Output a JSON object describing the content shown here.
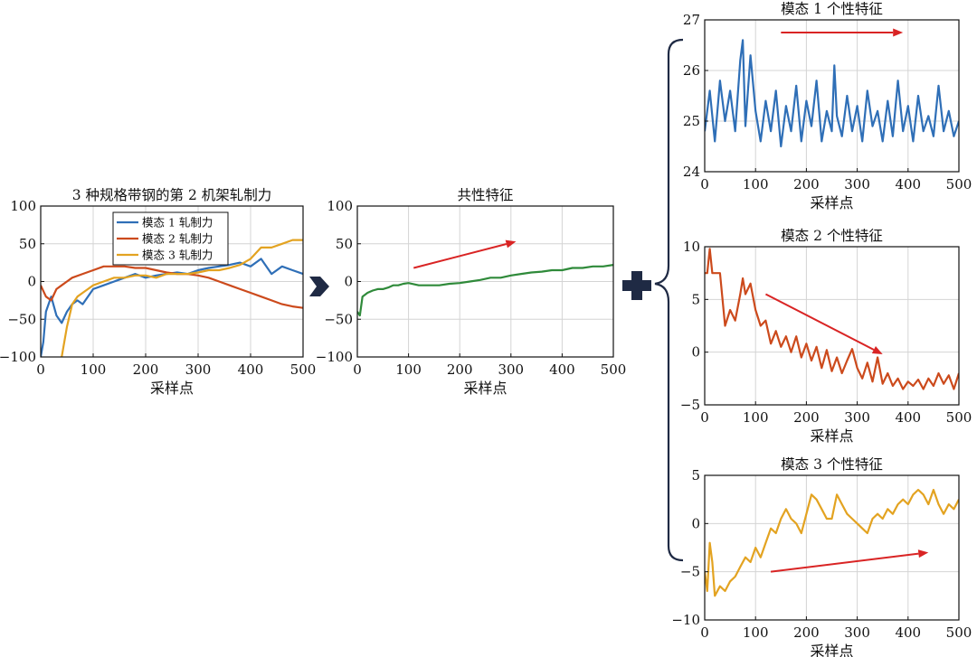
{
  "colors": {
    "mode1": "#2f6fb7",
    "mode2": "#cc4a1c",
    "mode3": "#e3a321",
    "common": "#2f8a3a",
    "trend_arrow": "#d92424",
    "connector": "#1f2a44"
  },
  "chart_data": [
    {
      "id": "rolling-force",
      "type": "line",
      "title": "3 种规格带钢的第 2 机架轧制力",
      "xlabel": "采样点",
      "ylabel": "",
      "xlim": [
        0,
        500
      ],
      "ylim": [
        -100,
        100
      ],
      "xticks": [
        0,
        100,
        200,
        300,
        400,
        500
      ],
      "yticks": [
        -100,
        -50,
        0,
        50,
        100
      ],
      "grid": true,
      "legend": "top-left",
      "series": [
        {
          "name": "模态 1 轧制力",
          "color_key": "mode1",
          "x": [
            0,
            5,
            10,
            20,
            30,
            40,
            50,
            60,
            70,
            80,
            90,
            100,
            120,
            140,
            160,
            180,
            200,
            220,
            240,
            260,
            280,
            300,
            320,
            340,
            360,
            380,
            400,
            420,
            440,
            460,
            480,
            500
          ],
          "y": [
            -100,
            -80,
            -40,
            -20,
            -45,
            -55,
            -40,
            -30,
            -25,
            -30,
            -20,
            -10,
            -5,
            0,
            5,
            10,
            5,
            8,
            10,
            12,
            10,
            15,
            18,
            20,
            22,
            25,
            20,
            30,
            10,
            20,
            15,
            10
          ]
        },
        {
          "name": "模态 2 轧制力",
          "color_key": "mode2",
          "x": [
            0,
            10,
            20,
            30,
            40,
            50,
            60,
            80,
            100,
            120,
            140,
            160,
            180,
            200,
            220,
            240,
            260,
            280,
            300,
            320,
            340,
            360,
            380,
            400,
            420,
            440,
            460,
            480,
            500
          ],
          "y": [
            -5,
            -20,
            -25,
            -10,
            -5,
            0,
            5,
            10,
            15,
            20,
            20,
            20,
            18,
            18,
            15,
            12,
            10,
            10,
            8,
            5,
            0,
            -5,
            -10,
            -15,
            -20,
            -25,
            -30,
            -33,
            -35
          ]
        },
        {
          "name": "模态 3 轧制力",
          "color_key": "mode3",
          "x": [
            40,
            45,
            50,
            60,
            70,
            80,
            90,
            100,
            120,
            140,
            160,
            180,
            200,
            220,
            240,
            260,
            280,
            300,
            320,
            340,
            360,
            380,
            400,
            420,
            440,
            460,
            480,
            500
          ],
          "y": [
            -100,
            -80,
            -60,
            -30,
            -20,
            -15,
            -10,
            -5,
            0,
            5,
            5,
            8,
            8,
            5,
            10,
            10,
            10,
            12,
            15,
            15,
            18,
            22,
            30,
            45,
            45,
            50,
            55,
            55
          ]
        }
      ]
    },
    {
      "id": "common-feature",
      "type": "line",
      "title": "共性特征",
      "xlabel": "采样点",
      "ylabel": "",
      "xlim": [
        0,
        500
      ],
      "ylim": [
        -100,
        100
      ],
      "xticks": [
        0,
        100,
        200,
        300,
        400,
        500
      ],
      "yticks": [
        -100,
        -50,
        0,
        50,
        100
      ],
      "grid": true,
      "series": [
        {
          "color_key": "common",
          "x": [
            0,
            5,
            10,
            20,
            30,
            40,
            50,
            60,
            70,
            80,
            90,
            100,
            120,
            140,
            160,
            180,
            200,
            220,
            240,
            260,
            280,
            300,
            320,
            340,
            360,
            380,
            400,
            420,
            440,
            460,
            480,
            500
          ],
          "y": [
            -40,
            -45,
            -20,
            -15,
            -12,
            -10,
            -10,
            -8,
            -5,
            -5,
            -3,
            -2,
            -5,
            -5,
            -5,
            -3,
            -2,
            0,
            2,
            5,
            5,
            8,
            10,
            12,
            13,
            15,
            15,
            18,
            18,
            20,
            20,
            22
          ]
        }
      ],
      "annotations": [
        {
          "type": "trend-arrow",
          "from": [
            110,
            18
          ],
          "to": [
            310,
            53
          ]
        }
      ]
    },
    {
      "id": "mode1-feature",
      "type": "line",
      "title": "模态 1 个性特征",
      "xlabel": "采样点",
      "ylabel": "",
      "xlim": [
        0,
        500
      ],
      "ylim": [
        24,
        27
      ],
      "xticks": [
        0,
        100,
        200,
        300,
        400,
        500
      ],
      "yticks": [
        24,
        25,
        26,
        27
      ],
      "grid": true,
      "series": [
        {
          "color_key": "mode1",
          "x": [
            0,
            10,
            20,
            30,
            40,
            50,
            60,
            70,
            75,
            80,
            90,
            100,
            110,
            120,
            130,
            140,
            150,
            160,
            170,
            180,
            190,
            200,
            210,
            220,
            230,
            240,
            250,
            255,
            260,
            270,
            280,
            290,
            300,
            310,
            320,
            330,
            340,
            350,
            360,
            370,
            380,
            390,
            400,
            410,
            420,
            430,
            440,
            450,
            460,
            470,
            480,
            490,
            500
          ],
          "y": [
            24.8,
            25.6,
            24.6,
            25.8,
            25.0,
            25.6,
            24.8,
            26.2,
            26.6,
            24.9,
            26.3,
            25.2,
            24.6,
            25.4,
            24.8,
            25.6,
            24.5,
            25.3,
            24.8,
            25.7,
            24.6,
            25.4,
            24.9,
            25.8,
            24.6,
            25.2,
            24.8,
            26.1,
            25.1,
            24.7,
            25.5,
            24.8,
            25.3,
            24.6,
            25.6,
            24.9,
            25.2,
            24.6,
            25.4,
            24.7,
            25.8,
            24.8,
            25.3,
            24.6,
            25.5,
            24.8,
            25.1,
            24.7,
            25.7,
            24.8,
            25.2,
            24.7,
            25.0
          ]
        }
      ],
      "annotations": [
        {
          "type": "trend-arrow",
          "from": [
            150,
            26.75
          ],
          "to": [
            390,
            26.75
          ]
        }
      ]
    },
    {
      "id": "mode2-feature",
      "type": "line",
      "title": "模态 2 个性特征",
      "xlabel": "采样点",
      "ylabel": "",
      "xlim": [
        0,
        500
      ],
      "ylim": [
        -5,
        10
      ],
      "xticks": [
        0,
        100,
        200,
        300,
        400,
        500
      ],
      "yticks": [
        -5,
        0,
        5,
        10
      ],
      "grid": true,
      "series": [
        {
          "color_key": "mode2",
          "x": [
            0,
            5,
            10,
            15,
            20,
            30,
            40,
            50,
            60,
            70,
            75,
            80,
            90,
            100,
            110,
            120,
            130,
            140,
            150,
            160,
            170,
            180,
            190,
            200,
            210,
            220,
            230,
            240,
            250,
            260,
            270,
            280,
            290,
            300,
            310,
            320,
            330,
            340,
            350,
            360,
            370,
            380,
            390,
            400,
            410,
            420,
            430,
            440,
            450,
            460,
            470,
            480,
            490,
            500
          ],
          "y": [
            7.5,
            7.5,
            9.8,
            7.5,
            7.5,
            7.5,
            2.5,
            4.0,
            3.0,
            5.5,
            7.0,
            5.5,
            6.5,
            4.0,
            2.5,
            3.0,
            0.8,
            2.0,
            0.5,
            1.5,
            0.0,
            1.5,
            -0.5,
            0.8,
            -0.8,
            0.5,
            -1.5,
            0.2,
            -1.8,
            -0.5,
            -2.0,
            -0.8,
            0.3,
            -1.5,
            -2.5,
            -1.0,
            -2.8,
            -0.5,
            -3.0,
            -2.0,
            -3.2,
            -2.5,
            -3.5,
            -2.8,
            -3.2,
            -2.6,
            -3.5,
            -2.5,
            -3.2,
            -2.0,
            -3.0,
            -2.2,
            -3.5,
            -2.0
          ]
        }
      ],
      "annotations": [
        {
          "type": "trend-arrow",
          "from": [
            120,
            5.5
          ],
          "to": [
            350,
            -0.2
          ]
        }
      ]
    },
    {
      "id": "mode3-feature",
      "type": "line",
      "title": "模态 3 个性特征",
      "xlabel": "采样点",
      "ylabel": "",
      "xlim": [
        0,
        500
      ],
      "ylim": [
        -10,
        5
      ],
      "xticks": [
        0,
        100,
        200,
        300,
        400,
        500
      ],
      "yticks": [
        -10,
        -5,
        0,
        5
      ],
      "grid": true,
      "series": [
        {
          "color_key": "mode3",
          "x": [
            0,
            5,
            10,
            15,
            20,
            30,
            40,
            50,
            60,
            70,
            80,
            90,
            100,
            110,
            120,
            130,
            140,
            150,
            160,
            170,
            180,
            190,
            200,
            210,
            220,
            230,
            240,
            250,
            260,
            270,
            280,
            290,
            300,
            310,
            320,
            330,
            340,
            350,
            360,
            370,
            380,
            390,
            400,
            410,
            420,
            430,
            440,
            450,
            460,
            470,
            480,
            490,
            500
          ],
          "y": [
            -5,
            -7,
            -2,
            -4,
            -7.5,
            -6.5,
            -7,
            -6,
            -5.5,
            -4.5,
            -3.5,
            -4,
            -2.5,
            -3.5,
            -2,
            -0.5,
            -1,
            0.5,
            1.5,
            0.5,
            0,
            -1,
            1,
            3,
            2.5,
            1.5,
            0.5,
            0.5,
            3,
            2,
            1,
            0.5,
            0,
            -0.5,
            -1,
            0.5,
            1,
            0.5,
            1.5,
            1,
            2,
            2.5,
            2,
            3,
            3.5,
            3,
            2,
            3.5,
            2,
            1,
            2,
            1.5,
            2.5
          ]
        }
      ],
      "annotations": [
        {
          "type": "trend-arrow",
          "from": [
            130,
            -5
          ],
          "to": [
            440,
            -3
          ]
        }
      ]
    }
  ]
}
